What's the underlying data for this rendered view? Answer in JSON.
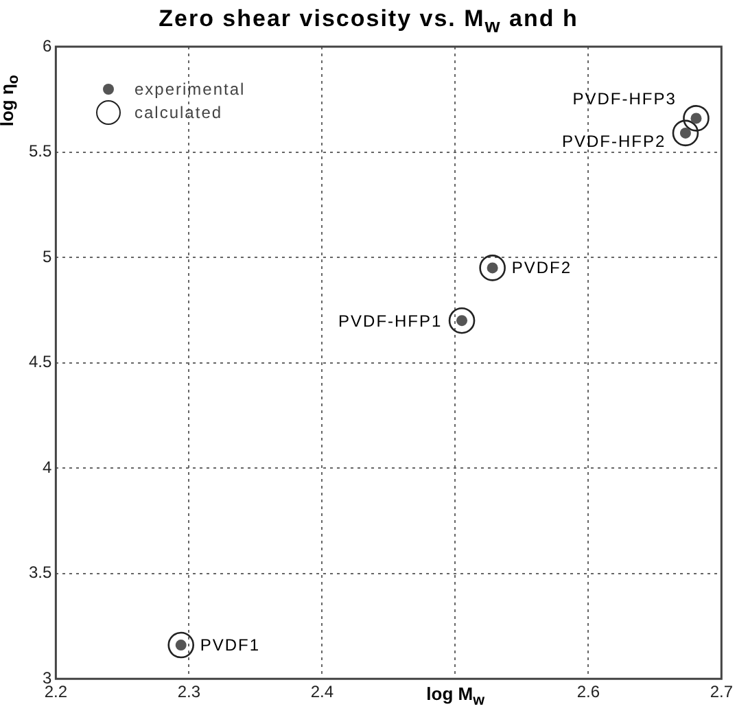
{
  "chart_data": {
    "type": "scatter",
    "title": "Zero shear viscosity vs. M$_{w}$ and h",
    "xlabel": "log M$_{w}$",
    "ylabel": "log η$_{o}$",
    "xlim": [
      2.2,
      2.7
    ],
    "xticks": [
      2.2,
      2.3,
      2.4,
      {
        "value": 2.5,
        "label": null
      },
      2.6,
      2.7
    ],
    "ylim": [
      3,
      6
    ],
    "yticks": [
      3,
      3.5,
      4,
      4.5,
      5,
      5.5,
      6
    ],
    "grid": true,
    "legend": "top left",
    "series": [
      {
        "name": "experimental",
        "color": "#555555",
        "marker": "circle",
        "x": [
          2.294,
          2.505,
          2.528,
          2.673,
          2.681
        ],
        "values": [
          3.16,
          4.7,
          4.95,
          5.59,
          5.66
        ]
      },
      {
        "name": "calculated",
        "color": "#222222",
        "marker": "circle",
        "x": [
          2.294,
          2.505,
          2.528,
          2.673,
          2.681
        ],
        "values": [
          3.16,
          4.7,
          4.95,
          5.59,
          5.66
        ]
      }
    ],
    "annotations": [
      {
        "text": "PVDF1",
        "x": 2.294,
        "y": 3.16
      },
      {
        "text": "PVDF-HFP1",
        "x": 2.505,
        "y": 4.7
      },
      {
        "text": "PVDF2",
        "x": 2.528,
        "y": 4.95
      },
      {
        "text": "PVDF-HFP2",
        "x": 2.673,
        "y": 5.59
      },
      {
        "text": "PVDF-HFP3",
        "x": 2.681,
        "y": 5.66
      }
    ]
  }
}
